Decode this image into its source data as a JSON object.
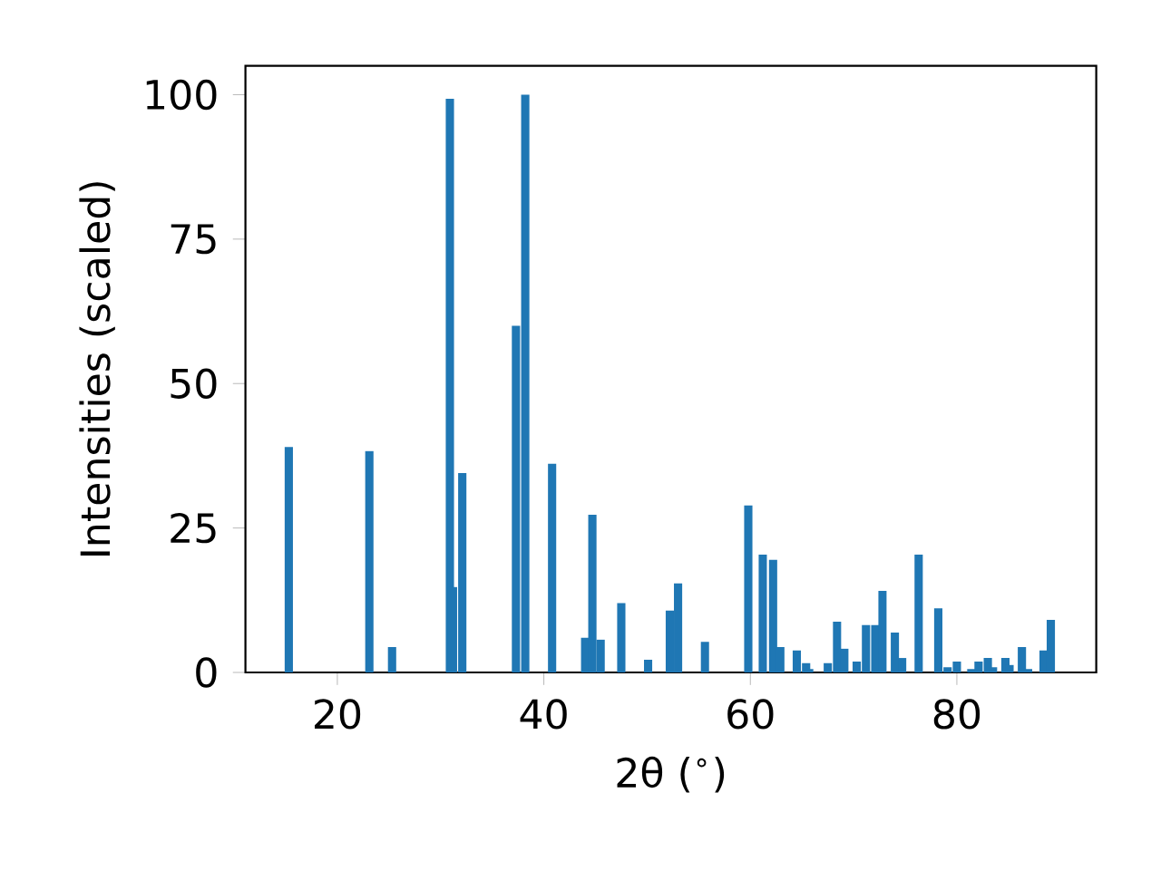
{
  "chart_data": {
    "type": "bar",
    "xlabel": "2θ ($^{∘}$)",
    "ylabel": "Intensities (scaled)",
    "color": "#1f77b4",
    "x": [
      15.3,
      23.1,
      25.3,
      30.9,
      31.2,
      32.1,
      37.3,
      38.2,
      40.8,
      44.0,
      44.7,
      45.5,
      47.5,
      50.1,
      52.2,
      53.0,
      55.6,
      59.8,
      61.2,
      62.2,
      62.9,
      64.5,
      65.4,
      65.7,
      67.5,
      68.4,
      69.1,
      70.3,
      71.2,
      72.1,
      72.8,
      74.0,
      74.7,
      76.3,
      78.2,
      79.1,
      80.0,
      81.4,
      82.1,
      83.0,
      83.5,
      84.7,
      85.1,
      86.3,
      86.9,
      88.4,
      89.1
    ],
    "values": [
      39.0,
      38.3,
      4.4,
      99.3,
      14.8,
      34.5,
      60.0,
      100,
      36.1,
      6.0,
      27.3,
      5.7,
      12.0,
      2.2,
      10.7,
      15.4,
      5.3,
      28.9,
      20.4,
      19.5,
      4.4,
      3.8,
      1.6,
      0.6,
      1.6,
      8.8,
      4.1,
      1.9,
      8.2,
      8.2,
      14.1,
      6.9,
      2.5,
      20.4,
      11.1,
      0.9,
      1.9,
      0.6,
      1.9,
      2.5,
      0.9,
      2.5,
      1.3,
      4.4,
      0.6,
      3.8,
      9.1
    ],
    "xlim": [
      11.1,
      93.5
    ],
    "ylim": [
      0,
      105
    ],
    "xticks": [
      20,
      40,
      60,
      80
    ],
    "yticks": [
      0,
      25,
      50,
      75,
      100
    ],
    "grid": false
  }
}
